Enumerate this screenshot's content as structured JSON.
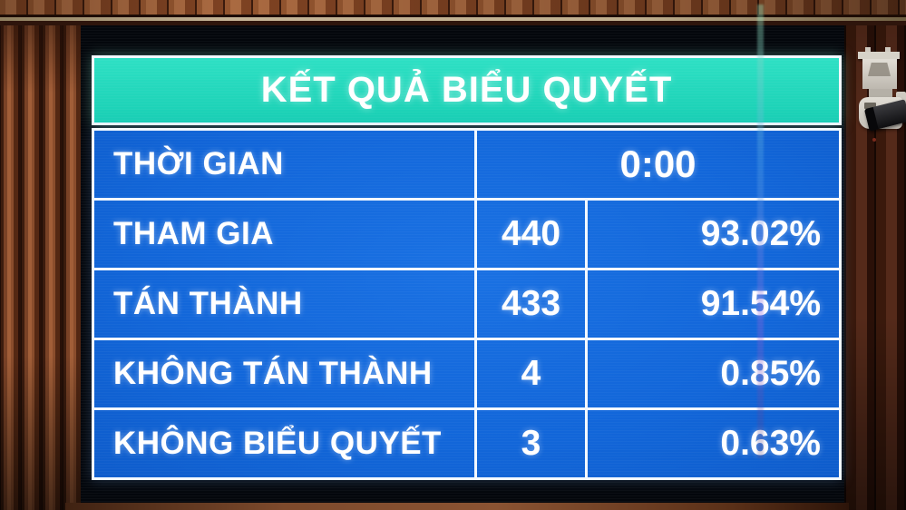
{
  "board": {
    "title": "KẾT QUẢ BIỂU QUYẾT",
    "time": {
      "label": "THỜI GIAN",
      "value": "0:00"
    },
    "results": [
      {
        "label": "THAM GIA",
        "count": "440",
        "percent": "93.02%"
      },
      {
        "label": "TÁN THÀNH",
        "count": "433",
        "percent": "91.54%"
      },
      {
        "label": "KHÔNG TÁN THÀNH",
        "count": "4",
        "percent": "0.85%"
      },
      {
        "label": "KHÔNG BIỂU QUYẾT",
        "count": "3",
        "percent": "0.63%"
      }
    ],
    "colors": {
      "header_bg": "#1fd8bd",
      "cell_bg": "#1266d9",
      "grid_line": "#f2f8ff",
      "screen_bg": "#04070c",
      "text": "#ffffff"
    }
  },
  "scene": {
    "camera_icon": "security-camera",
    "wall_material": "wooden-slat-panel"
  }
}
